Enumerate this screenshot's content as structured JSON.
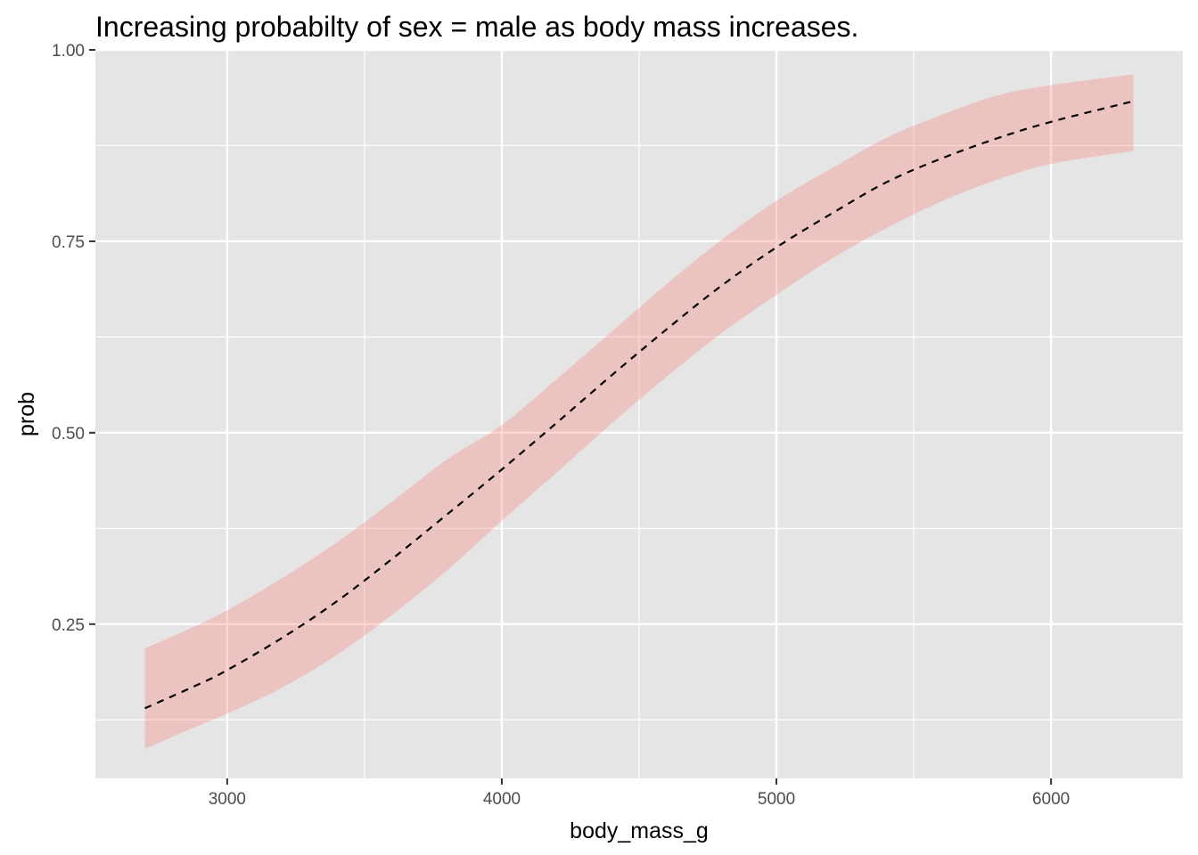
{
  "chart_data": {
    "type": "line",
    "title": "Increasing probabilty of sex = male as body mass increases.",
    "xlabel": "body_mass_g",
    "ylabel": "prob",
    "xlim": [
      2520,
      6480
    ],
    "ylim": [
      0.0485,
      1.0
    ],
    "x_ticks": [
      3000,
      4000,
      5000,
      6000
    ],
    "x_tick_labels": [
      "3000",
      "4000",
      "5000",
      "6000"
    ],
    "x_minor_ticks": [
      3500,
      4500,
      5500
    ],
    "y_ticks": [
      0.25,
      0.5,
      0.75,
      1.0
    ],
    "y_tick_labels": [
      "0.25",
      "0.50",
      "0.75",
      "1.00"
    ],
    "y_minor_ticks": [
      0.125,
      0.375,
      0.625,
      0.875
    ],
    "grid": true,
    "colors": {
      "panel_background": "#e5e5e5",
      "grid": "#ffffff",
      "ribbon": "#f8766d",
      "line": "#000000"
    },
    "series": [
      {
        "style": "dashed",
        "x": [
          2700,
          2900,
          3000,
          3200,
          3400,
          3600,
          3800,
          4000,
          4200,
          4400,
          4600,
          4800,
          5000,
          5200,
          5400,
          5600,
          5800,
          6000,
          6300
        ],
        "y": [
          0.14,
          0.172,
          0.19,
          0.232,
          0.28,
          0.335,
          0.393,
          0.452,
          0.513,
          0.575,
          0.635,
          0.692,
          0.742,
          0.786,
          0.827,
          0.858,
          0.884,
          0.906,
          0.933
        ],
        "lower": [
          0.087,
          0.118,
          0.133,
          0.167,
          0.21,
          0.262,
          0.32,
          0.385,
          0.448,
          0.512,
          0.573,
          0.63,
          0.68,
          0.727,
          0.767,
          0.802,
          0.83,
          0.851,
          0.868
        ],
        "upper": [
          0.218,
          0.25,
          0.268,
          0.31,
          0.357,
          0.41,
          0.465,
          0.51,
          0.57,
          0.632,
          0.694,
          0.752,
          0.803,
          0.845,
          0.885,
          0.915,
          0.94,
          0.954,
          0.968
        ]
      }
    ]
  }
}
